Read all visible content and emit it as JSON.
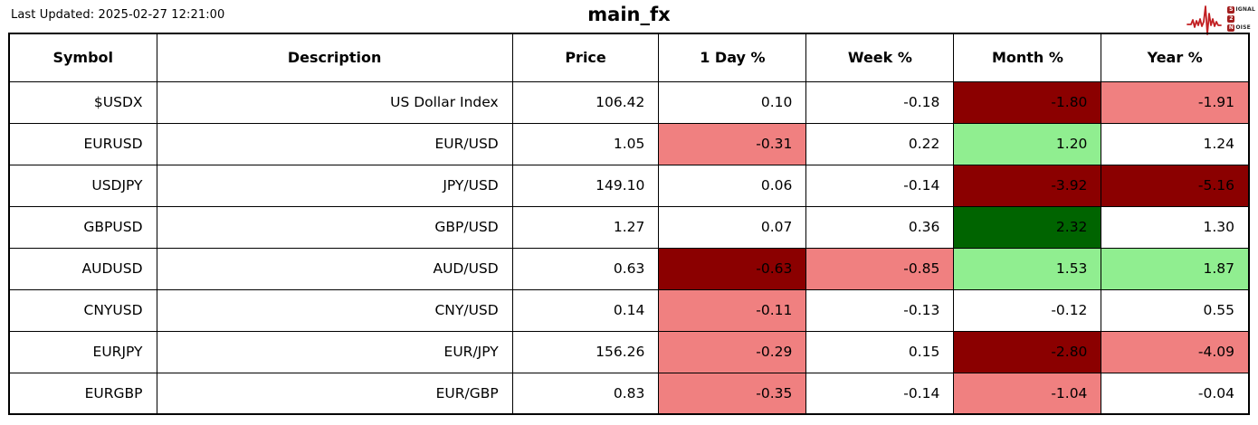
{
  "header": {
    "last_updated": "Last Updated: 2025-02-27 12:21:00",
    "title": "main_fx"
  },
  "logo": {
    "line1_initial": "S",
    "line1_rest": "IGNAL",
    "line2_initial": "2",
    "line2_rest": "",
    "line3_initial": "N",
    "line3_rest": "OISE",
    "waveform_color": "#c22023",
    "box_color": "#a31f1f"
  },
  "chart_data": {
    "type": "table",
    "title": "main_fx",
    "columns": [
      "Symbol",
      "Description",
      "Price",
      "1 Day %",
      "Week %",
      "Month %",
      "Year %"
    ],
    "cell_colors": {
      "none": "#ffffff",
      "darkred": "#8b0000",
      "lightred": "#f08080",
      "lightgreen": "#90ee90",
      "darkgreen": "#006400"
    },
    "rows": [
      {
        "symbol": "$USDX",
        "description": "US Dollar Index",
        "price": "106.42",
        "pct": [
          {
            "v": "0.10",
            "bg": "none"
          },
          {
            "v": "-0.18",
            "bg": "none"
          },
          {
            "v": "-1.80",
            "bg": "darkred"
          },
          {
            "v": "-1.91",
            "bg": "lightred"
          }
        ]
      },
      {
        "symbol": "EURUSD",
        "description": "EUR/USD",
        "price": "1.05",
        "pct": [
          {
            "v": "-0.31",
            "bg": "lightred"
          },
          {
            "v": "0.22",
            "bg": "none"
          },
          {
            "v": "1.20",
            "bg": "lightgreen"
          },
          {
            "v": "1.24",
            "bg": "none"
          }
        ]
      },
      {
        "symbol": "USDJPY",
        "description": "JPY/USD",
        "price": "149.10",
        "pct": [
          {
            "v": "0.06",
            "bg": "none"
          },
          {
            "v": "-0.14",
            "bg": "none"
          },
          {
            "v": "-3.92",
            "bg": "darkred"
          },
          {
            "v": "-5.16",
            "bg": "darkred"
          }
        ]
      },
      {
        "symbol": "GBPUSD",
        "description": "GBP/USD",
        "price": "1.27",
        "pct": [
          {
            "v": "0.07",
            "bg": "none"
          },
          {
            "v": "0.36",
            "bg": "none"
          },
          {
            "v": "2.32",
            "bg": "darkgreen"
          },
          {
            "v": "1.30",
            "bg": "none"
          }
        ]
      },
      {
        "symbol": "AUDUSD",
        "description": "AUD/USD",
        "price": "0.63",
        "pct": [
          {
            "v": "-0.63",
            "bg": "darkred"
          },
          {
            "v": "-0.85",
            "bg": "lightred"
          },
          {
            "v": "1.53",
            "bg": "lightgreen"
          },
          {
            "v": "1.87",
            "bg": "lightgreen"
          }
        ]
      },
      {
        "symbol": "CNYUSD",
        "description": "CNY/USD",
        "price": "0.14",
        "pct": [
          {
            "v": "-0.11",
            "bg": "lightred"
          },
          {
            "v": "-0.13",
            "bg": "none"
          },
          {
            "v": "-0.12",
            "bg": "none"
          },
          {
            "v": "0.55",
            "bg": "none"
          }
        ]
      },
      {
        "symbol": "EURJPY",
        "description": "EUR/JPY",
        "price": "156.26",
        "pct": [
          {
            "v": "-0.29",
            "bg": "lightred"
          },
          {
            "v": "0.15",
            "bg": "none"
          },
          {
            "v": "-2.80",
            "bg": "darkred"
          },
          {
            "v": "-4.09",
            "bg": "lightred"
          }
        ]
      },
      {
        "symbol": "EURGBP",
        "description": "EUR/GBP",
        "price": "0.83",
        "pct": [
          {
            "v": "-0.35",
            "bg": "lightred"
          },
          {
            "v": "-0.14",
            "bg": "none"
          },
          {
            "v": "-1.04",
            "bg": "lightred"
          },
          {
            "v": "-0.04",
            "bg": "none"
          }
        ]
      }
    ]
  }
}
